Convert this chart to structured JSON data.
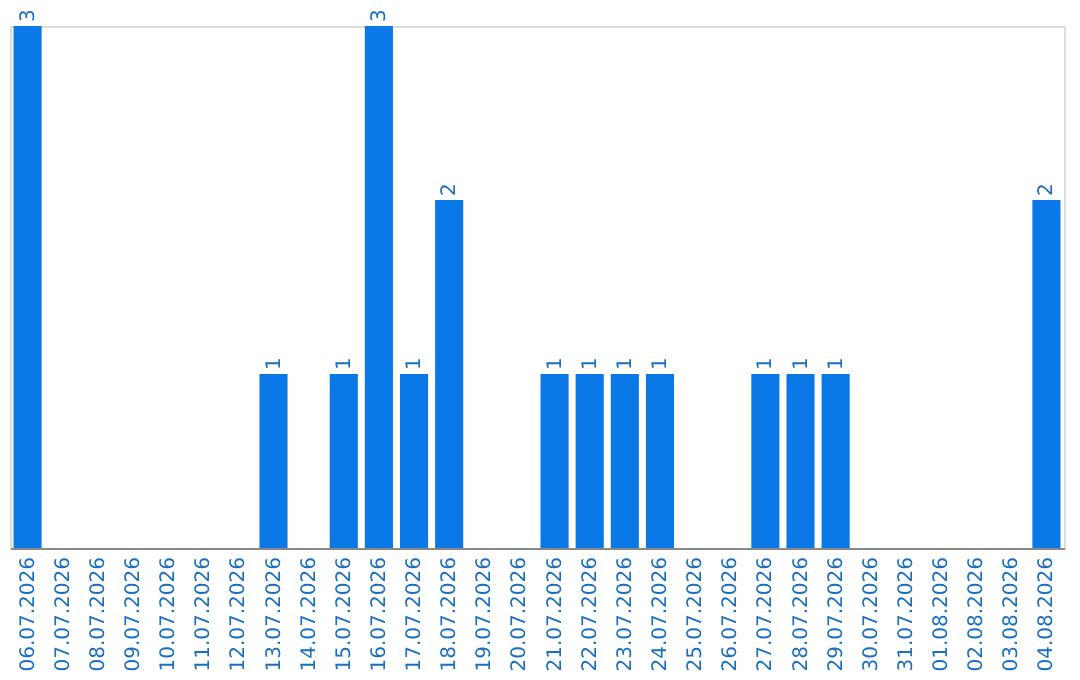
{
  "chart_data": {
    "type": "bar",
    "categories": [
      "06.07.2026",
      "07.07.2026",
      "08.07.2026",
      "09.07.2026",
      "10.07.2026",
      "11.07.2026",
      "12.07.2026",
      "13.07.2026",
      "14.07.2026",
      "15.07.2026",
      "16.07.2026",
      "17.07.2026",
      "18.07.2026",
      "19.07.2026",
      "20.07.2026",
      "21.07.2026",
      "22.07.2026",
      "23.07.2026",
      "24.07.2026",
      "25.07.2026",
      "26.07.2026",
      "27.07.2026",
      "28.07.2026",
      "29.07.2026",
      "30.07.2026",
      "31.07.2026",
      "01.08.2026",
      "02.08.2026",
      "03.08.2026",
      "04.08.2026"
    ],
    "values": [
      3,
      0,
      0,
      0,
      0,
      0,
      0,
      1,
      0,
      1,
      3,
      1,
      2,
      0,
      0,
      1,
      1,
      1,
      1,
      0,
      0,
      1,
      1,
      1,
      0,
      0,
      0,
      0,
      0,
      2
    ],
    "value_labels": [
      "3",
      null,
      null,
      null,
      null,
      null,
      null,
      "1",
      null,
      "1",
      "3",
      "1",
      "2",
      null,
      null,
      "1",
      "1",
      "1",
      "1",
      null,
      null,
      "1",
      "1",
      "1",
      null,
      null,
      null,
      null,
      null,
      "2"
    ],
    "color": "#0a78e6",
    "ylim": [
      0,
      3
    ],
    "tick_labels": "x",
    "grid": false
  }
}
